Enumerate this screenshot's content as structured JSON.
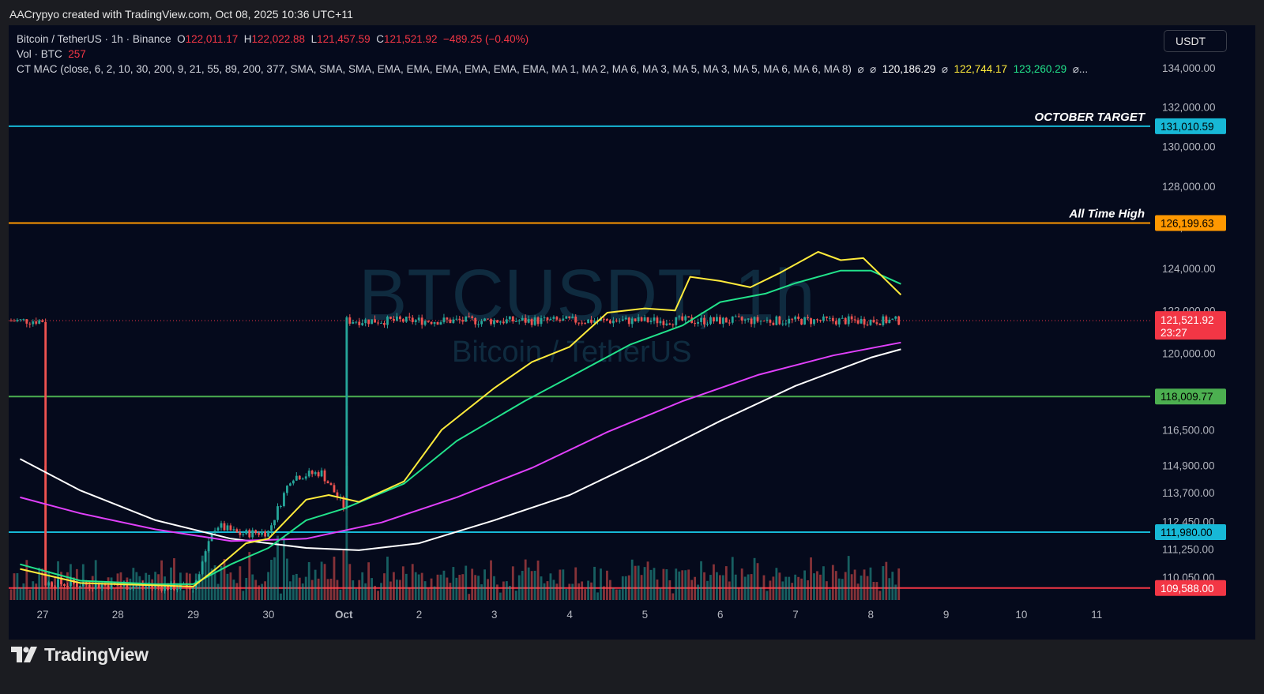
{
  "header": {
    "attribution": "AACrypyo created with TradingView.com, Oct 08, 2025 10:36 UTC+11"
  },
  "legend": {
    "symbol": "Bitcoin / TetherUS · 1h · Binance",
    "o_label": "O",
    "o_value": "122,011.17",
    "h_label": "H",
    "h_value": "122,022.88",
    "l_label": "L",
    "l_value": "121,457.59",
    "c_label": "C",
    "c_value": "121,521.92",
    "change": "−489.25 (−0.40%)",
    "vol_label": "Vol · BTC",
    "vol_value": "257",
    "indicator": "CT MAC (close, 6, 2, 10, 30, 200, 9, 21, 55, 89, 200, 377, SMA, SMA, SMA, EMA, EMA, EMA, EMA, EMA, EMA, MA 1, MA 2, MA 6, MA 3, MA 5, MA 3, MA 5, MA 6, MA 6, MA 8)",
    "null_glyph": "⌀",
    "ind_value_white": "120,186.29",
    "ind_value_yellow": "122,744.17",
    "ind_value_green": "123,260.29",
    "ellipsis": "..."
  },
  "currency_button": "USDT",
  "watermark": {
    "symbol": "BTCUSDT, 1h",
    "name": "Bitcoin / TetherUS"
  },
  "footer": {
    "brand": "TradingView"
  },
  "colors": {
    "up": "#26a69a",
    "down": "#ef5350",
    "line_white": "#ffffff",
    "line_magenta": "#e040fb",
    "line_green": "#22e28b",
    "line_yellow": "#ffeb3b",
    "level_cyan": "#17b8d6",
    "level_orange": "#ff9800",
    "level_green": "#4caf50",
    "level_red": "#f23645"
  },
  "chart_data": {
    "type": "candlestick",
    "title": "Bitcoin / TetherUS · 1h · Binance",
    "y_axis": {
      "ticks": [
        "134,000.00",
        "132,000.00",
        "130,000.00",
        "128,000.00",
        "126,000.00",
        "124,000.00",
        "122,000.00",
        "120,000.00",
        "116,500.00",
        "114,900.00",
        "113,700.00",
        "112,450.00",
        "111,250.00",
        "110,050.00"
      ],
      "scale": "log"
    },
    "x_axis": {
      "ticks": [
        "27",
        "28",
        "29",
        "30",
        "Oct",
        "2",
        "3",
        "4",
        "5",
        "6",
        "7",
        "8",
        "9",
        "10",
        "11"
      ]
    },
    "current_price": {
      "value": "121,521.92",
      "countdown": "23:27"
    },
    "horizontal_levels": [
      {
        "label": "OCTOBER TARGET",
        "value": "131,010.59",
        "color": "#17b8d6"
      },
      {
        "label": "All Time High",
        "value": "126,199.63",
        "color": "#ff9800"
      },
      {
        "label": "",
        "value": "118,009.77",
        "color": "#4caf50"
      },
      {
        "label": "",
        "value": "111,980.00",
        "color": "#17b8d6"
      },
      {
        "label": "",
        "value": "109,588.00",
        "color": "#f23645"
      }
    ],
    "price_path": [
      [
        "27",
        109800
      ],
      [
        "27.5",
        109750
      ],
      [
        "28",
        109700
      ],
      [
        "28.5",
        109650
      ],
      [
        "29",
        109600
      ],
      [
        "29.3",
        112300
      ],
      [
        "29.6",
        111900
      ],
      [
        "30",
        112000
      ],
      [
        "30.3",
        114400
      ],
      [
        "30.7",
        114600
      ],
      [
        "Oct",
        113100
      ],
      [
        "Oct 1.4",
        114200
      ],
      [
        "Oct 1.8",
        114400
      ],
      [
        "2",
        116900
      ],
      [
        "2.4",
        117600
      ],
      [
        "2.7",
        118700
      ],
      [
        "3",
        119000
      ],
      [
        "3.3",
        120300
      ],
      [
        "3.7",
        119800
      ],
      [
        "4",
        120700
      ],
      [
        "4.2",
        122500
      ],
      [
        "4.6",
        122300
      ],
      [
        "5",
        121600
      ],
      [
        "5.3",
        121800
      ],
      [
        "5.6",
        125100
      ],
      [
        "5.8",
        123200
      ],
      [
        "6",
        123000
      ],
      [
        "6.3",
        122800
      ],
      [
        "6.6",
        123800
      ],
      [
        "7",
        124100
      ],
      [
        "7.2",
        125800
      ],
      [
        "7.5",
        124800
      ],
      [
        "7.8",
        124000
      ],
      [
        "8",
        124900
      ],
      [
        "8.1",
        121300
      ],
      [
        "8.2",
        120900
      ],
      [
        "8.3",
        122200
      ],
      [
        "8.4",
        121522
      ]
    ],
    "series": [
      {
        "name": "MA white",
        "values": [
          [
            26.7,
            115200
          ],
          [
            27.5,
            113800
          ],
          [
            28.5,
            112500
          ],
          [
            29.5,
            111700
          ],
          [
            30.5,
            111300
          ],
          [
            31.2,
            111200
          ],
          [
            32,
            111500
          ],
          [
            33,
            112500
          ],
          [
            34,
            113600
          ],
          [
            35,
            115200
          ],
          [
            36,
            116900
          ],
          [
            37,
            118500
          ],
          [
            38,
            119800
          ],
          [
            38.4,
            120186
          ]
        ]
      },
      {
        "name": "MA magenta",
        "values": [
          [
            26.7,
            113500
          ],
          [
            27.5,
            112800
          ],
          [
            28.5,
            112100
          ],
          [
            29.5,
            111600
          ],
          [
            30.5,
            111700
          ],
          [
            31.5,
            112400
          ],
          [
            32.5,
            113500
          ],
          [
            33.5,
            114800
          ],
          [
            34.5,
            116400
          ],
          [
            35.5,
            117800
          ],
          [
            36.5,
            119000
          ],
          [
            37.5,
            119900
          ],
          [
            38.4,
            120500
          ]
        ]
      },
      {
        "name": "MA green",
        "values": [
          [
            26.7,
            110600
          ],
          [
            27.5,
            109900
          ],
          [
            28.5,
            109750
          ],
          [
            29,
            109750
          ],
          [
            29.5,
            110600
          ],
          [
            30,
            111300
          ],
          [
            30.5,
            112500
          ],
          [
            31,
            113000
          ],
          [
            31.8,
            114100
          ],
          [
            32.5,
            116000
          ],
          [
            33.4,
            117800
          ],
          [
            34,
            118900
          ],
          [
            34.8,
            120400
          ],
          [
            35.5,
            121300
          ],
          [
            36,
            122400
          ],
          [
            36.6,
            122800
          ],
          [
            37,
            123300
          ],
          [
            37.6,
            123900
          ],
          [
            38,
            123900
          ],
          [
            38.4,
            123260
          ]
        ]
      },
      {
        "name": "MA yellow",
        "values": [
          [
            26.7,
            110400
          ],
          [
            27.5,
            109800
          ],
          [
            28.5,
            109700
          ],
          [
            29,
            109650
          ],
          [
            29.3,
            110400
          ],
          [
            29.7,
            111500
          ],
          [
            30,
            111700
          ],
          [
            30.5,
            113400
          ],
          [
            30.8,
            113600
          ],
          [
            31.2,
            113300
          ],
          [
            31.8,
            114200
          ],
          [
            32.3,
            116500
          ],
          [
            33,
            118400
          ],
          [
            33.5,
            119600
          ],
          [
            34,
            120300
          ],
          [
            34.5,
            121900
          ],
          [
            35,
            122100
          ],
          [
            35.4,
            122000
          ],
          [
            35.6,
            123600
          ],
          [
            36,
            123400
          ],
          [
            36.4,
            123100
          ],
          [
            36.8,
            123800
          ],
          [
            37.3,
            124800
          ],
          [
            37.6,
            124400
          ],
          [
            37.9,
            124500
          ],
          [
            38.1,
            123800
          ],
          [
            38.4,
            122744
          ]
        ]
      }
    ]
  }
}
